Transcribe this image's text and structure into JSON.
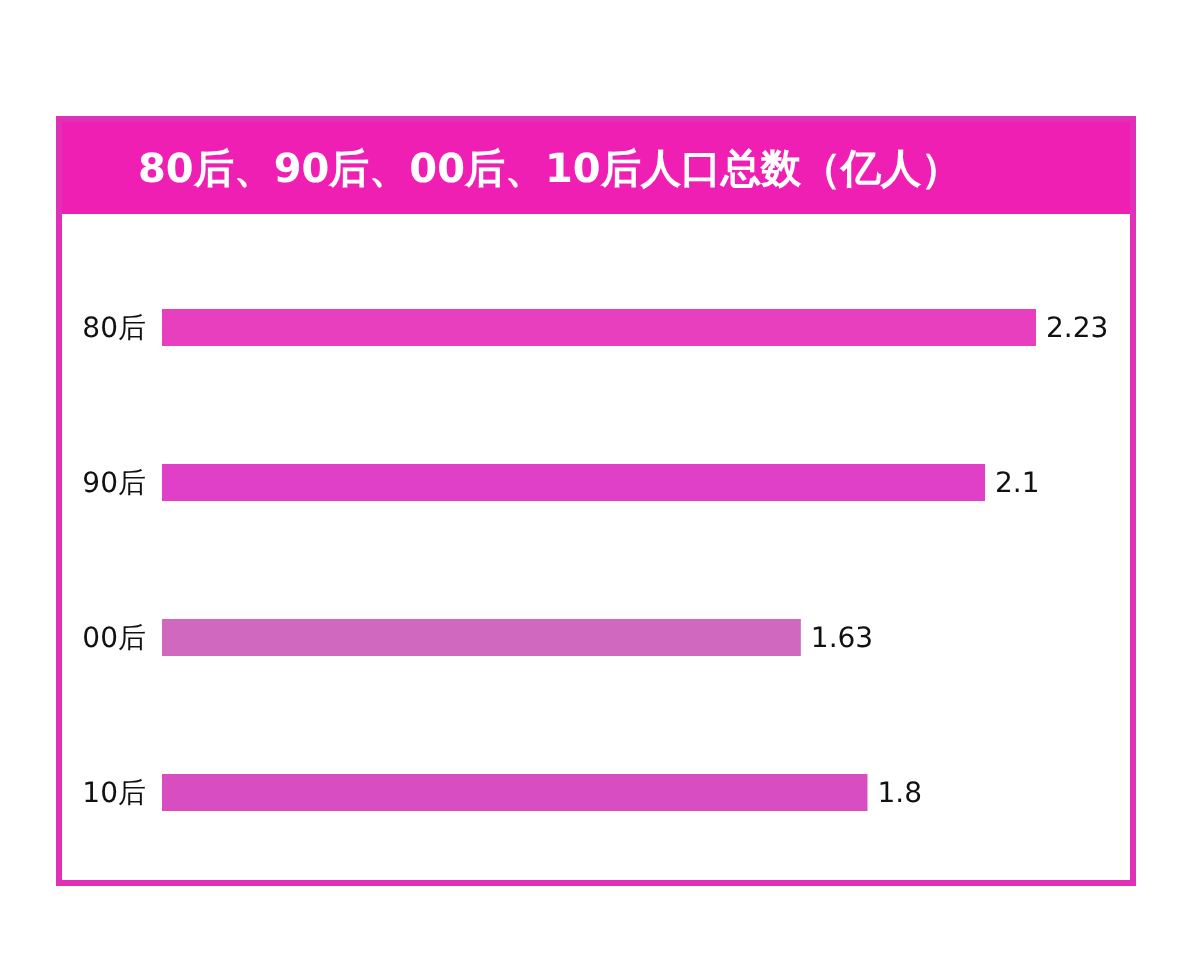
{
  "chart_data": {
    "type": "bar",
    "orientation": "horizontal",
    "title": "80后、90后、00后、10后人口总数（亿人）",
    "categories": [
      "80后",
      "90后",
      "00后",
      "10后"
    ],
    "values": [
      2.23,
      2.1,
      1.63,
      1.8
    ],
    "colors": [
      "#e83fbf",
      "#e040c8",
      "#d068c0",
      "#d84ec0"
    ],
    "data_labels": true,
    "tick_labels": "y",
    "grid": false
  }
}
